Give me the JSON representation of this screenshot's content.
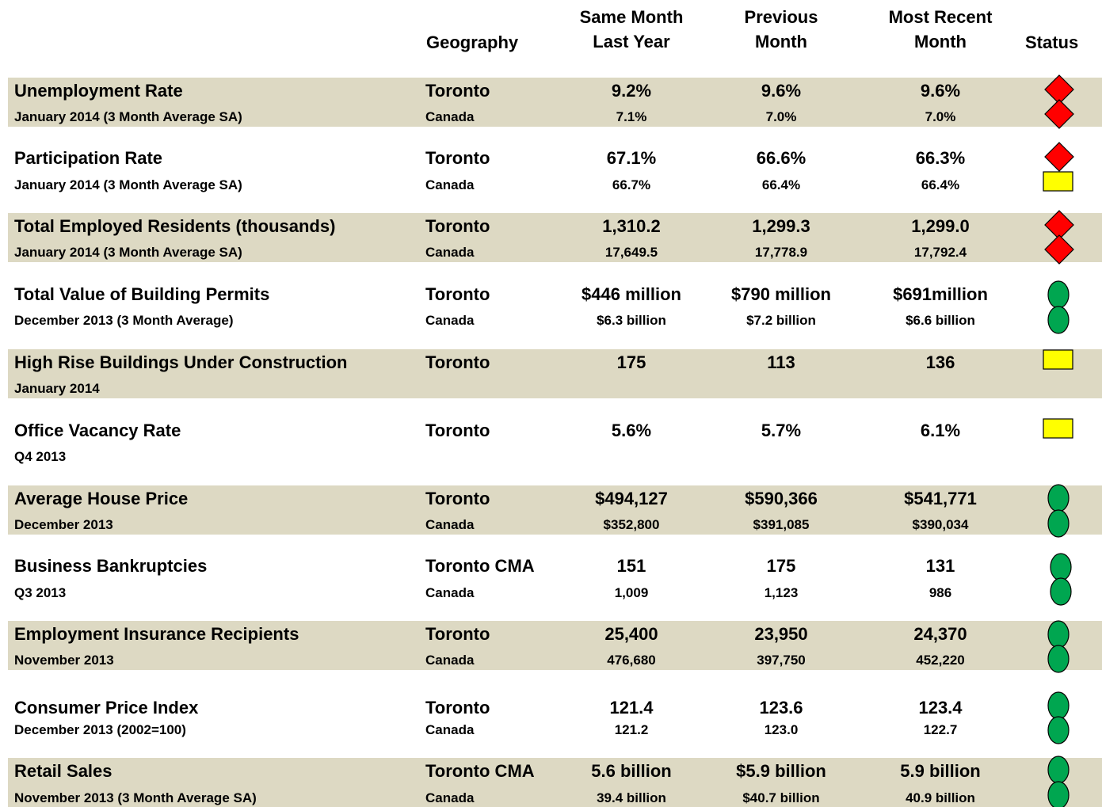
{
  "header": {
    "geography": "Geography",
    "columns": [
      [
        "Same Month",
        "Last Year"
      ],
      [
        "Previous",
        "Month"
      ],
      [
        "Most Recent",
        "Month"
      ]
    ],
    "status": "Status"
  },
  "rows": [
    {
      "title": "Unemployment Rate",
      "period": "January 2014 (3 Month Average SA)",
      "cells": [
        [
          "Toronto",
          "9.2%",
          "9.6%",
          "9.6%"
        ],
        [
          "Canada",
          "7.1%",
          "7.0%",
          "7.0%"
        ]
      ]
    },
    {
      "title": "Participation Rate",
      "period": "January 2014 (3 Month Average SA)",
      "cells": [
        [
          "Toronto",
          "67.1%",
          "66.6%",
          "66.3%"
        ],
        [
          "Canada",
          "66.7%",
          "66.4%",
          "66.4%"
        ]
      ]
    },
    {
      "title": "Total Employed Residents (thousands)",
      "period": "January 2014 (3 Month Average SA)",
      "cells": [
        [
          "Toronto",
          "1,310.2",
          "1,299.3",
          "1,299.0"
        ],
        [
          "Canada",
          "17,649.5",
          "17,778.9",
          "17,792.4"
        ]
      ]
    },
    {
      "title": "Total Value of Building Permits",
      "period": "December 2013 (3 Month Average)",
      "cells": [
        [
          "Toronto",
          "$446 million",
          "$790 million",
          "$691million"
        ],
        [
          "Canada",
          "$6.3 billion",
          "$7.2 billion",
          "$6.6 billion"
        ]
      ]
    },
    {
      "title": "High Rise Buildings Under Construction",
      "period": "January 2014",
      "cells": [
        [
          "Toronto",
          "175",
          "113",
          "136"
        ]
      ]
    },
    {
      "title": "Office Vacancy Rate",
      "period": "Q4 2013",
      "cells": [
        [
          "Toronto",
          "5.6%",
          "5.7%",
          "6.1%"
        ]
      ]
    },
    {
      "title": "Average House Price",
      "period": "December  2013",
      "cells": [
        [
          "Toronto",
          "$494,127",
          "$590,366",
          "$541,771"
        ],
        [
          "Canada",
          "$352,800",
          "$391,085",
          "$390,034"
        ]
      ]
    },
    {
      "title": "Business Bankruptcies",
      "period": "Q3 2013",
      "cells": [
        [
          "Toronto CMA",
          "151",
          "175",
          "131"
        ],
        [
          "Canada",
          "1,009",
          "1,123",
          "986"
        ]
      ]
    },
    {
      "title": "Employment Insurance Recipients",
      "period": "November  2013",
      "cells": [
        [
          "Toronto",
          "25,400",
          "23,950",
          "24,370"
        ],
        [
          "Canada",
          "476,680",
          "397,750",
          "452,220"
        ]
      ]
    },
    {
      "title": "Consumer Price Index",
      "period": "December  2013 (2002=100)",
      "cells": [
        [
          "Toronto",
          "121.4",
          "123.6",
          "123.4"
        ],
        [
          "Canada",
          "121.2",
          "123.0",
          "122.7"
        ]
      ]
    },
    {
      "title": "Retail Sales",
      "period": "November 2013 (3 Month Average SA)",
      "cells": [
        [
          "Toronto CMA",
          "5.6 billion",
          "$5.9 billion",
          "5.9 billion"
        ],
        [
          "Canada",
          "39.4 billion",
          "$40.7 billion",
          "40.9 billion"
        ]
      ]
    }
  ]
}
